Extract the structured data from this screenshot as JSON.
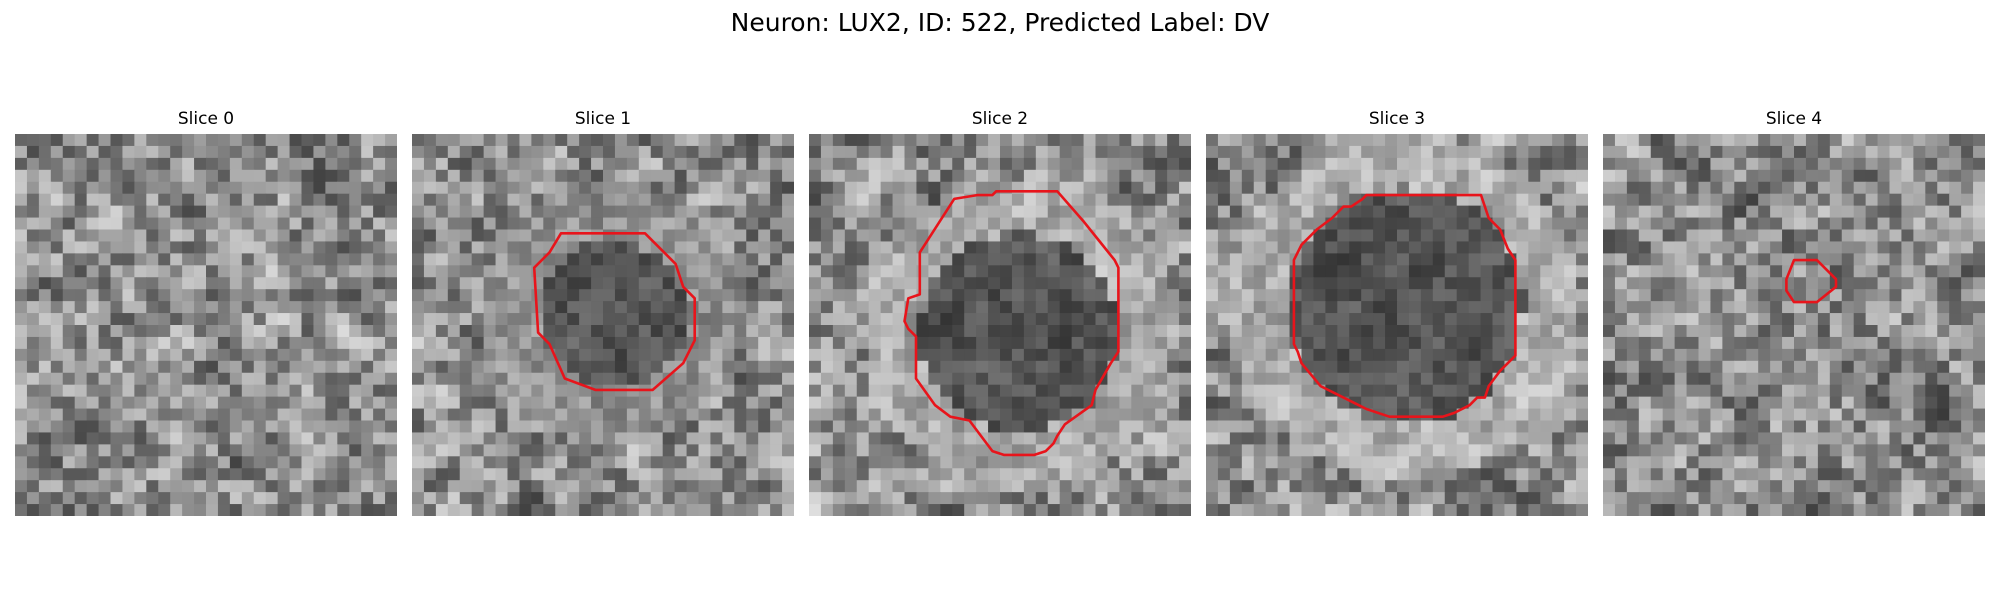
{
  "figure": {
    "title": "Neuron: LUX2, ID: 522, Predicted Label: DV"
  },
  "panels": [
    {
      "title": "Slice 0",
      "seed": 11,
      "has_contour": false,
      "contour": [],
      "dark_center": [
        0.5,
        0.5
      ],
      "dark_radius": 0,
      "ring_brightness": 0
    },
    {
      "title": "Slice 1",
      "seed": 23,
      "has_contour": true,
      "contour": [
        [
          0.39,
          0.26
        ],
        [
          0.61,
          0.26
        ],
        [
          0.69,
          0.34
        ],
        [
          0.71,
          0.4
        ],
        [
          0.74,
          0.43
        ],
        [
          0.74,
          0.54
        ],
        [
          0.71,
          0.6
        ],
        [
          0.63,
          0.67
        ],
        [
          0.52,
          0.67
        ],
        [
          0.48,
          0.67
        ],
        [
          0.4,
          0.64
        ],
        [
          0.36,
          0.55
        ],
        [
          0.33,
          0.52
        ],
        [
          0.32,
          0.35
        ],
        [
          0.36,
          0.31
        ]
      ],
      "dark_center": [
        0.53,
        0.47
      ],
      "dark_radius": 0.19,
      "ring_brightness": 0.55
    },
    {
      "title": "Slice 2",
      "seed": 37,
      "has_contour": true,
      "contour": [
        [
          0.38,
          0.17
        ],
        [
          0.44,
          0.16
        ],
        [
          0.48,
          0.16
        ],
        [
          0.49,
          0.15
        ],
        [
          0.65,
          0.15
        ],
        [
          0.72,
          0.23
        ],
        [
          0.76,
          0.28
        ],
        [
          0.8,
          0.33
        ],
        [
          0.81,
          0.35
        ],
        [
          0.81,
          0.57
        ],
        [
          0.79,
          0.6
        ],
        [
          0.75,
          0.67
        ],
        [
          0.74,
          0.71
        ],
        [
          0.67,
          0.76
        ],
        [
          0.65,
          0.79
        ],
        [
          0.64,
          0.81
        ],
        [
          0.62,
          0.83
        ],
        [
          0.59,
          0.84
        ],
        [
          0.51,
          0.84
        ],
        [
          0.48,
          0.83
        ],
        [
          0.42,
          0.75
        ],
        [
          0.37,
          0.74
        ],
        [
          0.33,
          0.71
        ],
        [
          0.28,
          0.64
        ],
        [
          0.28,
          0.53
        ],
        [
          0.26,
          0.51
        ],
        [
          0.25,
          0.49
        ],
        [
          0.26,
          0.43
        ],
        [
          0.29,
          0.42
        ],
        [
          0.29,
          0.31
        ]
      ],
      "dark_center": [
        0.55,
        0.52
      ],
      "dark_radius": 0.26,
      "ring_brightness": 0.75
    },
    {
      "title": "Slice 3",
      "seed": 51,
      "has_contour": true,
      "contour": [
        [
          0.33,
          0.22
        ],
        [
          0.36,
          0.19
        ],
        [
          0.38,
          0.19
        ],
        [
          0.41,
          0.17
        ],
        [
          0.42,
          0.16
        ],
        [
          0.72,
          0.16
        ],
        [
          0.74,
          0.22
        ],
        [
          0.77,
          0.25
        ],
        [
          0.79,
          0.3
        ],
        [
          0.81,
          0.33
        ],
        [
          0.81,
          0.58
        ],
        [
          0.77,
          0.62
        ],
        [
          0.74,
          0.66
        ],
        [
          0.73,
          0.69
        ],
        [
          0.71,
          0.69
        ],
        [
          0.69,
          0.71
        ],
        [
          0.65,
          0.73
        ],
        [
          0.62,
          0.74
        ],
        [
          0.48,
          0.74
        ],
        [
          0.42,
          0.72
        ],
        [
          0.4,
          0.71
        ],
        [
          0.36,
          0.69
        ],
        [
          0.3,
          0.66
        ],
        [
          0.25,
          0.6
        ],
        [
          0.24,
          0.57
        ],
        [
          0.23,
          0.55
        ],
        [
          0.23,
          0.33
        ],
        [
          0.25,
          0.29
        ],
        [
          0.29,
          0.25
        ]
      ],
      "dark_center": [
        0.52,
        0.45
      ],
      "dark_radius": 0.31,
      "ring_brightness": 0.8
    },
    {
      "title": "Slice 4",
      "seed": 73,
      "has_contour": true,
      "contour": [
        [
          0.5,
          0.33
        ],
        [
          0.56,
          0.33
        ],
        [
          0.61,
          0.38
        ],
        [
          0.61,
          0.4
        ],
        [
          0.56,
          0.44
        ],
        [
          0.5,
          0.44
        ],
        [
          0.48,
          0.41
        ],
        [
          0.48,
          0.38
        ]
      ],
      "dark_center": [
        0.55,
        0.5
      ],
      "dark_radius": 0.0,
      "ring_brightness": 0
    }
  ]
}
